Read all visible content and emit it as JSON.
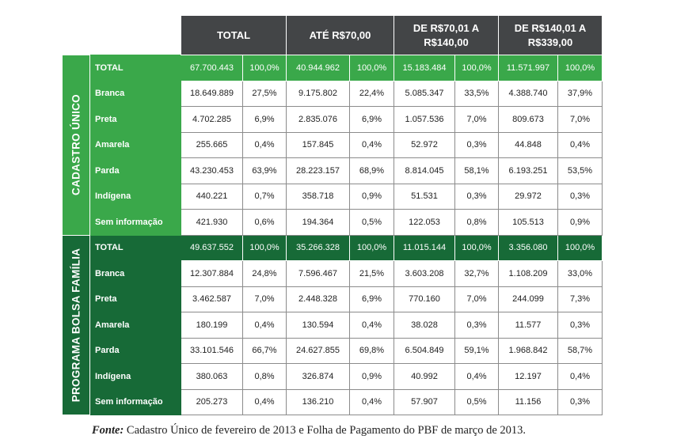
{
  "columns": [
    "TOTAL",
    "ATÉ R$70,00",
    "DE R$70,01 A R$140,00",
    "DE R$140,01 A R$339,00"
  ],
  "sections": [
    {
      "title": "CADASTRO ÚNICO",
      "rows": [
        {
          "label": "TOTAL",
          "values": [
            "67.700.443",
            "100,0%",
            "40.944.962",
            "100,0%",
            "15.183.484",
            "100,0%",
            "11.571.997",
            "100,0%"
          ]
        },
        {
          "label": "Branca",
          "values": [
            "18.649.889",
            "27,5%",
            "9.175.802",
            "22,4%",
            "5.085.347",
            "33,5%",
            "4.388.740",
            "37,9%"
          ]
        },
        {
          "label": "Preta",
          "values": [
            "4.702.285",
            "6,9%",
            "2.835.076",
            "6,9%",
            "1.057.536",
            "7,0%",
            "809.673",
            "7,0%"
          ]
        },
        {
          "label": "Amarela",
          "values": [
            "255.665",
            "0,4%",
            "157.845",
            "0,4%",
            "52.972",
            "0,3%",
            "44.848",
            "0,4%"
          ]
        },
        {
          "label": "Parda",
          "values": [
            "43.230.453",
            "63,9%",
            "28.223.157",
            "68,9%",
            "8.814.045",
            "58,1%",
            "6.193.251",
            "53,5%"
          ]
        },
        {
          "label": "Indígena",
          "values": [
            "440.221",
            "0,7%",
            "358.718",
            "0,9%",
            "51.531",
            "0,3%",
            "29.972",
            "0,3%"
          ]
        },
        {
          "label": "Sem informação",
          "values": [
            "421.930",
            "0,6%",
            "194.364",
            "0,5%",
            "122.053",
            "0,8%",
            "105.513",
            "0,9%"
          ]
        }
      ]
    },
    {
      "title": "PROGRAMA BOLSA FAMÍLIA",
      "rows": [
        {
          "label": "TOTAL",
          "values": [
            "49.637.552",
            "100,0%",
            "35.266.328",
            "100,0%",
            "11.015.144",
            "100,0%",
            "3.356.080",
            "100,0%"
          ]
        },
        {
          "label": "Branca",
          "values": [
            "12.307.884",
            "24,8%",
            "7.596.467",
            "21,5%",
            "3.603.208",
            "32,7%",
            "1.108.209",
            "33,0%"
          ]
        },
        {
          "label": "Preta",
          "values": [
            "3.462.587",
            "7,0%",
            "2.448.328",
            "6,9%",
            "770.160",
            "7,0%",
            "244.099",
            "7,3%"
          ]
        },
        {
          "label": "Amarela",
          "values": [
            "180.199",
            "0,4%",
            "130.594",
            "0,4%",
            "38.028",
            "0,3%",
            "11.577",
            "0,3%"
          ]
        },
        {
          "label": "Parda",
          "values": [
            "33.101.546",
            "66,7%",
            "24.627.855",
            "69,8%",
            "6.504.849",
            "59,1%",
            "1.968.842",
            "58,7%"
          ]
        },
        {
          "label": "Indígena",
          "values": [
            "380.063",
            "0,8%",
            "326.874",
            "0,9%",
            "40.992",
            "0,4%",
            "12.197",
            "0,4%"
          ]
        },
        {
          "label": "Sem informação",
          "values": [
            "205.273",
            "0,4%",
            "136.210",
            "0,4%",
            "57.907",
            "0,5%",
            "11.156",
            "0,3%"
          ]
        }
      ]
    }
  ],
  "footnote": {
    "label": "Fonte:",
    "text": "Cadastro Único de fevereiro de 2013 e Folha de Pagamento do PBF de março de 2013."
  },
  "colors": {
    "header_bg": "#434547",
    "cadastro_green": "#3aa84a",
    "bolsa_green": "#176a37"
  }
}
